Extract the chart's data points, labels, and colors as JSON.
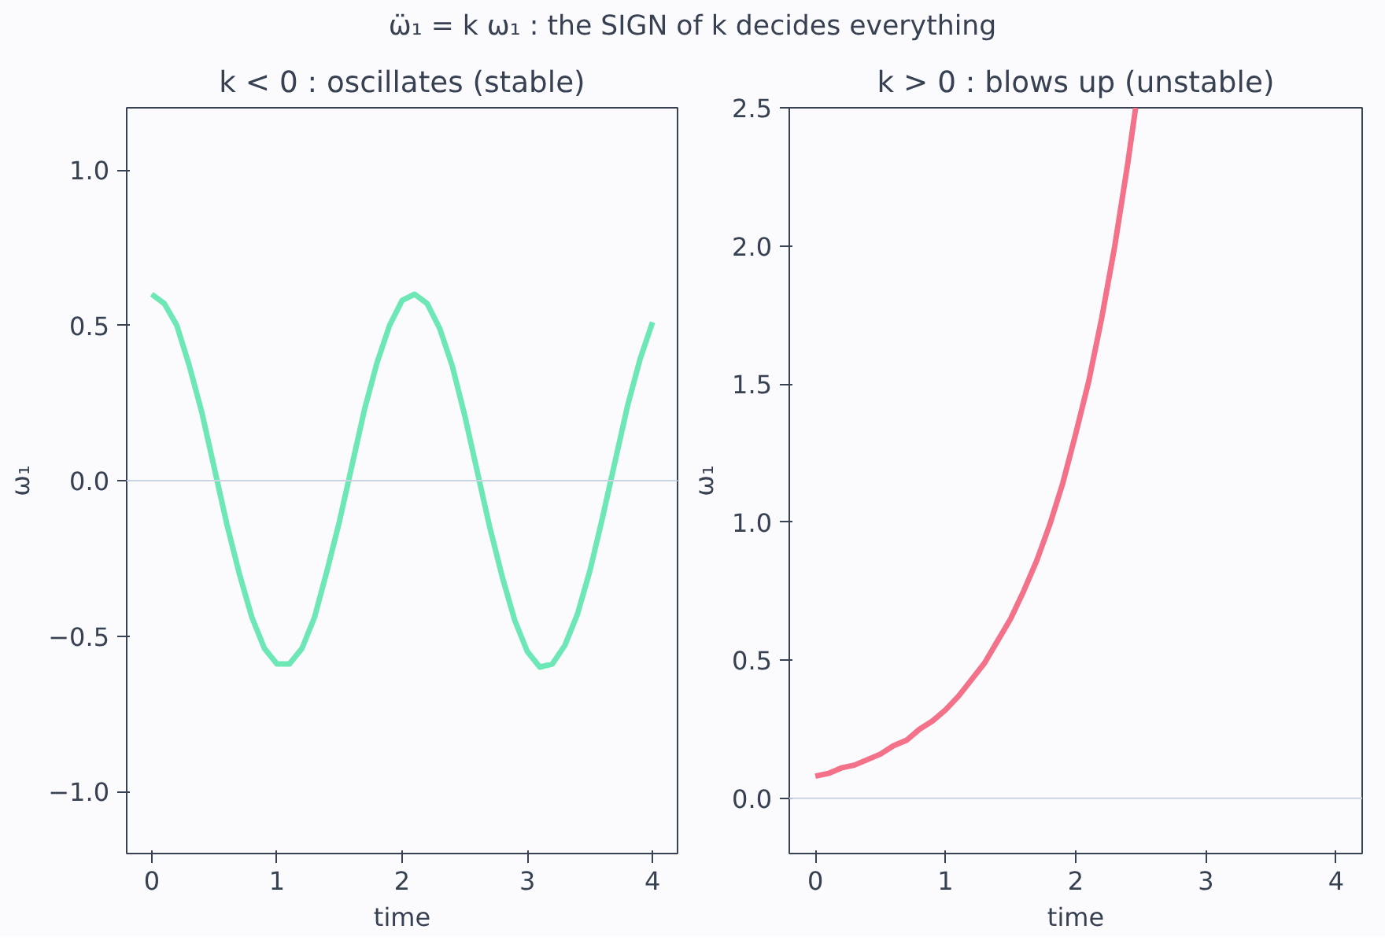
{
  "chart_data": [
    {
      "type": "line",
      "title": "k < 0 : oscillates (stable)",
      "xlabel": "time",
      "ylabel": "ω₁",
      "annotations": [
        "ω̈₁ = k ω₁ : the SIGN of k decides everything"
      ],
      "x": [
        0,
        0.1,
        0.2,
        0.3,
        0.4,
        0.5,
        0.6,
        0.7,
        0.8,
        0.9,
        1.0,
        1.1,
        1.2,
        1.3,
        1.4,
        1.5,
        1.6,
        1.7,
        1.8,
        1.9,
        2.0,
        2.1,
        2.2,
        2.3,
        2.4,
        2.5,
        2.6,
        2.7,
        2.8,
        2.9,
        3.0,
        3.1,
        3.2,
        3.3,
        3.4,
        3.5,
        3.6,
        3.7,
        3.8,
        3.9,
        4.0
      ],
      "series": [
        {
          "color": "#6ee7b7",
          "values": [
            0.6,
            0.57,
            0.5,
            0.37,
            0.22,
            0.04,
            -0.14,
            -0.3,
            -0.44,
            -0.54,
            -0.59,
            -0.59,
            -0.54,
            -0.44,
            -0.29,
            -0.13,
            0.05,
            0.23,
            0.38,
            0.5,
            0.58,
            0.6,
            0.57,
            0.49,
            0.37,
            0.21,
            0.03,
            -0.15,
            -0.31,
            -0.45,
            -0.55,
            -0.6,
            -0.59,
            -0.53,
            -0.43,
            -0.29,
            -0.12,
            0.06,
            0.24,
            0.39,
            0.51
          ]
        }
      ],
      "xlim": [
        -0.2,
        4.2
      ],
      "ylim": [
        -1.2,
        1.2
      ],
      "xticks": [
        0,
        1,
        2,
        3,
        4
      ],
      "yticks": [
        {
          "value": -1.0,
          "label": "−1.0"
        },
        {
          "value": -0.5,
          "label": "−0.5"
        },
        {
          "value": 0,
          "label": "0.0"
        },
        {
          "value": 0.5,
          "label": "0.5"
        },
        {
          "value": 1.0,
          "label": "1.0"
        }
      ],
      "ref_lines": [
        {
          "axis": "y",
          "value": 0,
          "color": "#cbd5e1"
        }
      ]
    },
    {
      "type": "line",
      "title": "k > 0 : blows up (unstable)",
      "xlabel": "time",
      "ylabel": "ω₁",
      "x": [
        0,
        0.1,
        0.2,
        0.3,
        0.4,
        0.5,
        0.6,
        0.7,
        0.8,
        0.9,
        1.0,
        1.1,
        1.2,
        1.3,
        1.4,
        1.5,
        1.6,
        1.7,
        1.8,
        1.9,
        2.0,
        2.1,
        2.2,
        2.3,
        2.4,
        2.46
      ],
      "series": [
        {
          "color": "#f4718a",
          "values": [
            0.08,
            0.09,
            0.11,
            0.12,
            0.14,
            0.16,
            0.19,
            0.21,
            0.25,
            0.28,
            0.32,
            0.37,
            0.43,
            0.49,
            0.57,
            0.65,
            0.75,
            0.86,
            0.99,
            1.14,
            1.32,
            1.51,
            1.74,
            2.0,
            2.3,
            2.5
          ]
        }
      ],
      "xlim": [
        -0.2,
        4.2
      ],
      "ylim": [
        -0.2,
        2.5
      ],
      "xticks": [
        0,
        1,
        2,
        3,
        4
      ],
      "yticks": [
        {
          "value": 0,
          "label": "0.0"
        },
        {
          "value": 0.5,
          "label": "0.5"
        },
        {
          "value": 1.0,
          "label": "1.0"
        },
        {
          "value": 1.5,
          "label": "1.5"
        },
        {
          "value": 2.0,
          "label": "2.0"
        },
        {
          "value": 2.5,
          "label": "2.5"
        }
      ],
      "ref_lines": [
        {
          "axis": "y",
          "value": 0,
          "color": "#cbd5e1"
        }
      ]
    }
  ]
}
